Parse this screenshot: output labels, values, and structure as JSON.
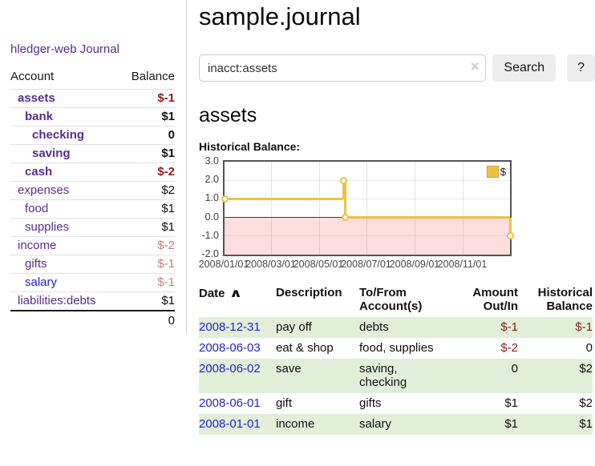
{
  "colors": {
    "link_purple": "#5b2d90",
    "link_blue": "#2323d2",
    "neg_strong": "#8e1c1f",
    "neg_soft": "#c47f7f",
    "row_green": "#e1efd9",
    "chart_gold": "#edc240",
    "chart_pink": "#fcdede",
    "zero_red": "#991111"
  },
  "sidebar": {
    "app_title": "hledger-web",
    "nav": {
      "journal": "Journal"
    },
    "headers": {
      "account": "Account",
      "balance": "Balance"
    },
    "accounts": [
      {
        "name": "assets",
        "level": 1,
        "bold": true,
        "balance": "$-1",
        "balance_tone": "neg-strong",
        "link_tone": "purple"
      },
      {
        "name": "bank",
        "level": 2,
        "bold": true,
        "balance": "$1",
        "balance_tone": "normal",
        "link_tone": "purple"
      },
      {
        "name": "checking",
        "level": 3,
        "bold": true,
        "balance": "0",
        "balance_tone": "normal",
        "link_tone": "purple"
      },
      {
        "name": "saving",
        "level": 3,
        "bold": true,
        "balance": "$1",
        "balance_tone": "normal",
        "link_tone": "purple"
      },
      {
        "name": "cash",
        "level": 2,
        "bold": true,
        "balance": "$-2",
        "balance_tone": "neg-strong",
        "link_tone": "purple"
      },
      {
        "name": "expenses",
        "level": 1,
        "bold": false,
        "balance": "$2",
        "balance_tone": "normal",
        "link_tone": "purple"
      },
      {
        "name": "food",
        "level": 2,
        "bold": false,
        "balance": "$1",
        "balance_tone": "normal",
        "link_tone": "purple"
      },
      {
        "name": "supplies",
        "level": 2,
        "bold": false,
        "balance": "$1",
        "balance_tone": "normal",
        "link_tone": "purple"
      },
      {
        "name": "income",
        "level": 1,
        "bold": false,
        "balance": "$-2",
        "balance_tone": "neg-soft",
        "link_tone": "purple"
      },
      {
        "name": "gifts",
        "level": 2,
        "bold": false,
        "balance": "$-1",
        "balance_tone": "neg-soft",
        "link_tone": "purple"
      },
      {
        "name": "salary",
        "level": 2,
        "bold": false,
        "balance": "$-1",
        "balance_tone": "neg-soft",
        "link_tone": "blue"
      },
      {
        "name": "liabilities:debts",
        "level": 1,
        "bold": false,
        "balance": "$1",
        "balance_tone": "normal",
        "link_tone": "purple"
      }
    ],
    "total": "0"
  },
  "header": {
    "title": "sample.journal"
  },
  "search": {
    "value": "inacct:assets",
    "clear_icon": "×",
    "search_button": "Search",
    "help_button": "?"
  },
  "account_page": {
    "heading": "assets",
    "chart_title": "Historical Balance:"
  },
  "chart_data": {
    "type": "line",
    "step": true,
    "title": "Historical Balance",
    "series": [
      {
        "name": "$",
        "color": "#edc240",
        "points": [
          [
            "2008-01-01",
            1
          ],
          [
            "2008-06-01",
            2
          ],
          [
            "2008-06-03",
            0
          ],
          [
            "2008-12-31",
            -1
          ]
        ]
      }
    ],
    "ylim": [
      -2,
      3
    ],
    "y_ticks": [
      "3.0",
      "2.0",
      "1.0",
      "0.0",
      "-1.0",
      "-2.0"
    ],
    "x_range": [
      "2008-01-01",
      "2008-12-31"
    ],
    "x_ticks": [
      "2008/01/01",
      "2008/03/01",
      "2008/05/01",
      "2008/07/01",
      "2008/09/01",
      "2008/11/01"
    ],
    "legend": {
      "label": "$",
      "position": "top-right"
    },
    "grid": true,
    "negative_region_shaded": true
  },
  "register": {
    "columns": {
      "date": "Date",
      "description": "Description",
      "to_from": "To/From Account(s)",
      "amount": "Amount Out/In",
      "balance": "Historical Balance"
    },
    "sort_indicator": "∧",
    "rows": [
      {
        "date": "2008-12-31",
        "description": "pay off",
        "to_from": "debts",
        "amount": "$-1",
        "amount_tone": "neg-strong",
        "balance": "$-1",
        "balance_tone": "neg-strong"
      },
      {
        "date": "2008-06-03",
        "description": "eat & shop",
        "to_from": "food, supplies",
        "amount": "$-2",
        "amount_tone": "neg-strong",
        "balance": "0",
        "balance_tone": "normal"
      },
      {
        "date": "2008-06-02",
        "description": "save",
        "to_from": "saving, checking",
        "amount": "0",
        "amount_tone": "normal",
        "balance": "$2",
        "balance_tone": "normal"
      },
      {
        "date": "2008-06-01",
        "description": "gift",
        "to_from": "gifts",
        "amount": "$1",
        "amount_tone": "normal",
        "balance": "$2",
        "balance_tone": "normal"
      },
      {
        "date": "2008-01-01",
        "description": "income",
        "to_from": "salary",
        "amount": "$1",
        "amount_tone": "normal",
        "balance": "$1",
        "balance_tone": "normal"
      }
    ]
  }
}
